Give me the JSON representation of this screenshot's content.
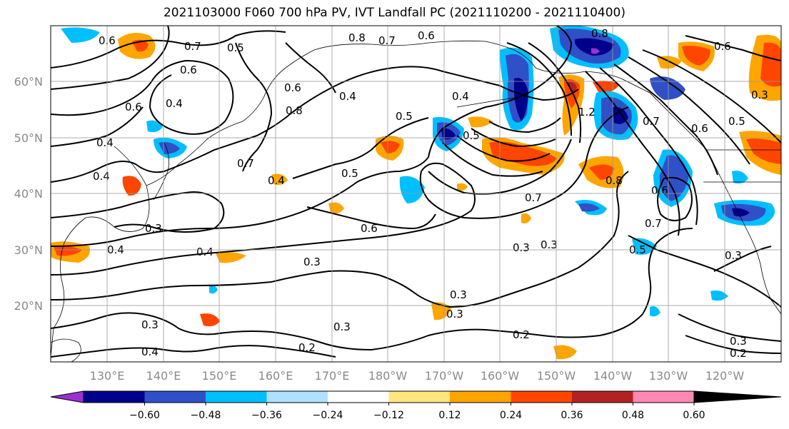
{
  "title": "2021103000 F060 700 hPa PV, IVT Landfall PC (2021110200 - 2021110400)",
  "lat_labels": [
    "60°N",
    "50°N",
    "40°N",
    "30°N",
    "20°N"
  ],
  "lon_labels": [
    "130°E",
    "140°E",
    "150°E",
    "160°E",
    "170°E",
    "180°W",
    "170°W",
    "160°W",
    "150°W",
    "140°W",
    "130°W",
    "120°W"
  ],
  "colorbar": {
    "ticks": [
      "−0.60",
      "−0.48",
      "−0.36",
      "−0.24",
      "−0.12",
      "0.12",
      "0.24",
      "0.36",
      "0.48",
      "0.60"
    ],
    "colors": [
      "#9b30d0",
      "#00008b",
      "#3050c8",
      "#00bfff",
      "#b0e0ff",
      "#ffffff",
      "#ffe680",
      "#ffa500",
      "#ff4500",
      "#b22222",
      "#ff88b4"
    ]
  },
  "contour_labels": [
    {
      "text": "0.6"
    },
    {
      "text": "0.5"
    },
    {
      "text": "0.7"
    },
    {
      "text": "0.6"
    },
    {
      "text": "0.8"
    },
    {
      "text": "0.7"
    },
    {
      "text": "0.6"
    },
    {
      "text": "0.6"
    },
    {
      "text": "0.4"
    },
    {
      "text": "0.6"
    },
    {
      "text": "0.4"
    },
    {
      "text": "0.8"
    },
    {
      "text": "0.4"
    },
    {
      "text": "0.7"
    },
    {
      "text": "0.4"
    },
    {
      "text": "0.5"
    },
    {
      "text": "0.4"
    },
    {
      "text": "0.5"
    },
    {
      "text": "0.4"
    },
    {
      "text": "0.3"
    },
    {
      "text": "0.4"
    },
    {
      "text": "0.4"
    },
    {
      "text": "0.6"
    },
    {
      "text": "0.3"
    },
    {
      "text": "0.7"
    },
    {
      "text": "0.3"
    },
    {
      "text": "0.3"
    },
    {
      "text": "0.3"
    },
    {
      "text": "0.3"
    },
    {
      "text": "0.2"
    },
    {
      "text": "0.3"
    },
    {
      "text": "0.2"
    },
    {
      "text": "0.4"
    },
    {
      "text": "0.3"
    },
    {
      "text": "0.7"
    },
    {
      "text": "0.8"
    },
    {
      "text": "0.6"
    },
    {
      "text": "0.7"
    },
    {
      "text": "0.5"
    },
    {
      "text": "0.3"
    },
    {
      "text": "0.3"
    },
    {
      "text": "0.2"
    },
    {
      "text": "0.8"
    },
    {
      "text": "0.6"
    },
    {
      "text": "0.6"
    },
    {
      "text": "0.5"
    },
    {
      "text": "0.3"
    },
    {
      "text": "1.2"
    },
    {
      "text": "0.5"
    }
  ]
}
